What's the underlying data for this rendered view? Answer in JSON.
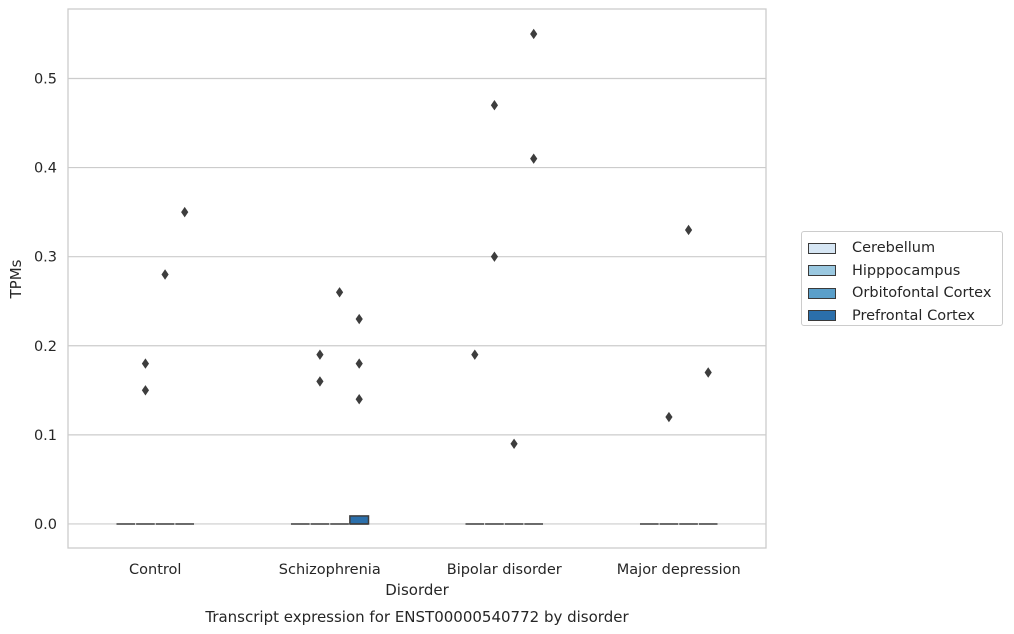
{
  "chart_data": {
    "type": "box",
    "caption": "Transcript expression for ENST00000540772 by disorder",
    "xlabel": "Disorder",
    "ylabel": "TPMs",
    "categories": [
      "Control",
      "Schizophrenia",
      "Bipolar disorder",
      "Major depression"
    ],
    "ylim": [
      -0.027,
      0.578
    ],
    "yticks": [
      0.0,
      0.1,
      0.2,
      0.3,
      0.4,
      0.5
    ],
    "ytick_labels": [
      "0.0",
      "0.1",
      "0.2",
      "0.3",
      "0.4",
      "0.5"
    ],
    "grid": true,
    "legend_position": "right",
    "series": [
      {
        "name": "Cerebellum",
        "color": "#d6e6f4",
        "boxes": [
          {
            "q1": 0,
            "median": 0,
            "q3": 0,
            "outliers": []
          },
          {
            "q1": 0,
            "median": 0,
            "q3": 0,
            "outliers": []
          },
          {
            "q1": 0,
            "median": 0,
            "q3": 0,
            "outliers": [
              0.19
            ]
          },
          {
            "q1": 0,
            "median": 0,
            "q3": 0,
            "outliers": []
          }
        ]
      },
      {
        "name": "Hipppocampus",
        "color": "#9ac8e0",
        "boxes": [
          {
            "q1": 0,
            "median": 0,
            "q3": 0,
            "outliers": [
              0.18,
              0.15
            ]
          },
          {
            "q1": 0,
            "median": 0,
            "q3": 0,
            "outliers": [
              0.19,
              0.16
            ]
          },
          {
            "q1": 0,
            "median": 0,
            "q3": 0,
            "outliers": [
              0.47,
              0.3
            ]
          },
          {
            "q1": 0,
            "median": 0,
            "q3": 0,
            "outliers": [
              0.12
            ]
          }
        ]
      },
      {
        "name": "Orbitofontal Cortex",
        "color": "#5a9fca",
        "boxes": [
          {
            "q1": 0,
            "median": 0,
            "q3": 0,
            "outliers": [
              0.28
            ]
          },
          {
            "q1": 0,
            "median": 0,
            "q3": 0,
            "outliers": [
              0.26
            ]
          },
          {
            "q1": 0,
            "median": 0,
            "q3": 0,
            "outliers": [
              0.09
            ]
          },
          {
            "q1": 0,
            "median": 0,
            "q3": 0,
            "outliers": [
              0.33
            ]
          }
        ]
      },
      {
        "name": "Prefrontal Cortex",
        "color": "#2b6fab",
        "boxes": [
          {
            "q1": 0,
            "median": 0,
            "q3": 0,
            "outliers": [
              0.35
            ]
          },
          {
            "q1": 0,
            "median": 0,
            "q3": 0.009,
            "outliers": [
              0.23,
              0.18,
              0.14
            ]
          },
          {
            "q1": 0,
            "median": 0,
            "q3": 0,
            "outliers": [
              0.55,
              0.41
            ]
          },
          {
            "q1": 0,
            "median": 0,
            "q3": 0,
            "outliers": [
              0.17
            ]
          }
        ]
      }
    ]
  },
  "colors": {
    "grid": "#cccccc",
    "frame": "#cccccc",
    "box_edge": "#3d3d3d",
    "outlier": "#3d3d3d"
  }
}
